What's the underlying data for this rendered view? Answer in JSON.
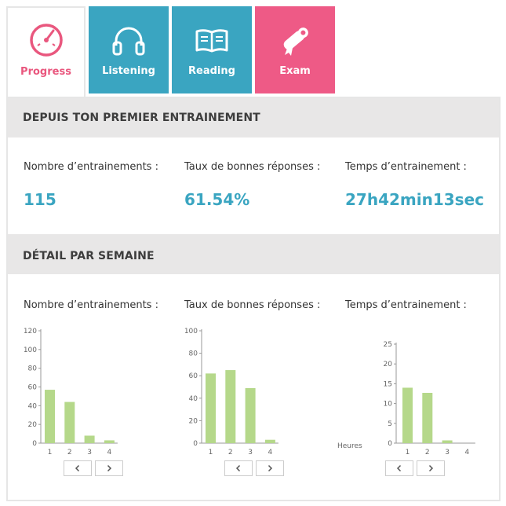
{
  "tabs": [
    {
      "label": "Progress",
      "icon": "gauge-icon",
      "active": true
    },
    {
      "label": "Listening",
      "icon": "headphones-icon"
    },
    {
      "label": "Reading",
      "icon": "book-icon"
    },
    {
      "label": "Exam",
      "icon": "diploma-icon"
    }
  ],
  "colors": {
    "accent_blue": "#3aa5c1",
    "accent_pink": "#ee5a86",
    "bar_green": "#b5d88a",
    "section_bg": "#e8e7e7"
  },
  "summary": {
    "heading": "DEPUIS TON PREMIER ENTRAINEMENT",
    "stats": [
      {
        "label": "Nombre d’entrainements :",
        "value": "115"
      },
      {
        "label": "Taux de bonnes réponses :",
        "value": "61.54%"
      },
      {
        "label": "Temps d’entrainement :",
        "value": "27h42min13sec"
      }
    ]
  },
  "weekly": {
    "heading": "DÉTAIL PAR SEMAINE",
    "labels": [
      "Nombre d’entrainements :",
      "Taux de bonnes réponses :",
      "Temps d’entrainement :"
    ]
  },
  "chart_data": [
    {
      "type": "bar",
      "categories": [
        "1",
        "2",
        "3",
        "4"
      ],
      "values": [
        57,
        44,
        8,
        3
      ],
      "ylim": [
        0,
        120
      ],
      "yticks": [
        0,
        20,
        40,
        60,
        80,
        100,
        120
      ],
      "ylabel": ""
    },
    {
      "type": "bar",
      "categories": [
        "1",
        "2",
        "3",
        "4"
      ],
      "values": [
        62,
        65,
        49,
        3
      ],
      "ylim": [
        0,
        100
      ],
      "yticks": [
        0,
        20,
        40,
        60,
        80,
        100
      ],
      "ylabel": ""
    },
    {
      "type": "bar",
      "categories": [
        "1",
        "2",
        "3",
        "4"
      ],
      "values": [
        14,
        12.7,
        0.7,
        0
      ],
      "ylim": [
        0,
        25
      ],
      "yticks": [
        0,
        5,
        10,
        15,
        20,
        25
      ],
      "ylabel": "Heures"
    }
  ]
}
